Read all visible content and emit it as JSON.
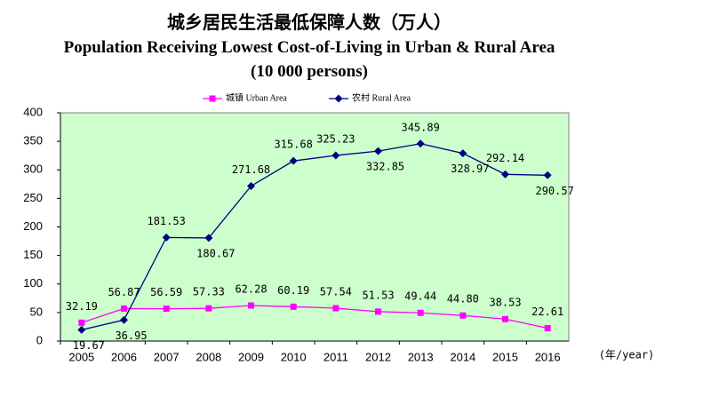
{
  "chart_data": {
    "type": "line",
    "title": "城乡居民生活最低保障人数（万人）",
    "subtitle": "Population Receiving Lowest Cost-of-Living in Urban & Rural Area (10 000 persons)",
    "x_label": "(年/year)",
    "categories": [
      "2005",
      "2006",
      "2007",
      "2008",
      "2009",
      "2010",
      "2011",
      "2012",
      "2013",
      "2014",
      "2015",
      "2016"
    ],
    "series": [
      {
        "name": "城镇 Urban Area",
        "color": "#ff00ff",
        "marker": "square",
        "values": [
          32.19,
          56.87,
          56.59,
          57.33,
          62.28,
          60.19,
          57.54,
          51.53,
          49.44,
          44.8,
          38.53,
          22.61
        ],
        "value_labels": [
          "32.19",
          "56.87",
          "56.59",
          "57.33",
          "62.28",
          "60.19",
          "57.54",
          "51.53",
          "49.44",
          "44.80",
          "38.53",
          "22.61"
        ]
      },
      {
        "name": "农村 Rural Area",
        "color": "#000080",
        "marker": "diamond",
        "values": [
          19.67,
          36.95,
          181.53,
          180.67,
          271.68,
          315.68,
          325.23,
          332.85,
          345.89,
          328.97,
          292.14,
          290.57
        ]
      }
    ],
    "ylim": [
      0,
      400
    ],
    "yticks": [
      0,
      50,
      100,
      150,
      200,
      250,
      300,
      350,
      400
    ],
    "plot_background": "#ccffcc"
  }
}
